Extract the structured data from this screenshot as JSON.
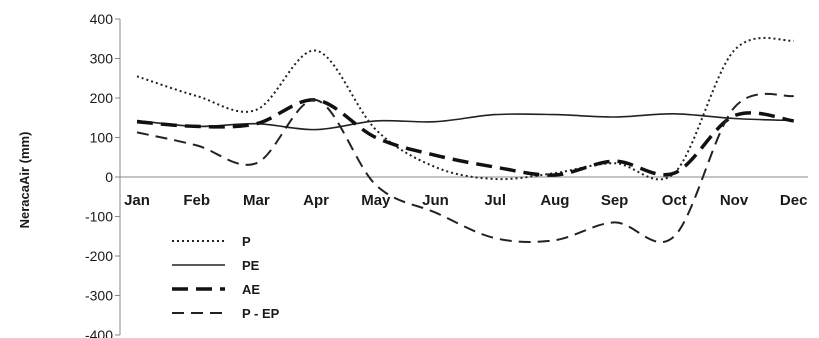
{
  "chart_data": {
    "type": "line",
    "ylabel": "NeracaAir (mm)",
    "xlabel": "",
    "ylim": [
      -400,
      400
    ],
    "yticks": [
      400,
      300,
      200,
      100,
      0,
      -100,
      -200,
      -300,
      -400
    ],
    "categories": [
      "Jan",
      "Feb",
      "Mar",
      "Apr",
      "May",
      "Jun",
      "Jul",
      "Aug",
      "Sep",
      "Oct",
      "Nov",
      "Dec"
    ],
    "legend_position": "bottom-left",
    "grid": false,
    "series": [
      {
        "name": "P",
        "style": "dotted",
        "color": "#222222",
        "values": [
          255,
          205,
          170,
          320,
          120,
          25,
          -5,
          10,
          35,
          10,
          320,
          345
        ]
      },
      {
        "name": "PE",
        "style": "solid",
        "color": "#222222",
        "values": [
          143,
          128,
          135,
          120,
          142,
          140,
          158,
          158,
          152,
          160,
          148,
          143
        ]
      },
      {
        "name": "AE",
        "style": "dash-thick",
        "color": "#111111",
        "values": [
          140,
          128,
          135,
          195,
          100,
          55,
          25,
          5,
          40,
          10,
          155,
          142
        ]
      },
      {
        "name": "P - EP",
        "style": "dash",
        "color": "#222222",
        "values": [
          113,
          80,
          35,
          195,
          -20,
          -90,
          -155,
          -160,
          -115,
          -150,
          175,
          205
        ]
      }
    ]
  }
}
